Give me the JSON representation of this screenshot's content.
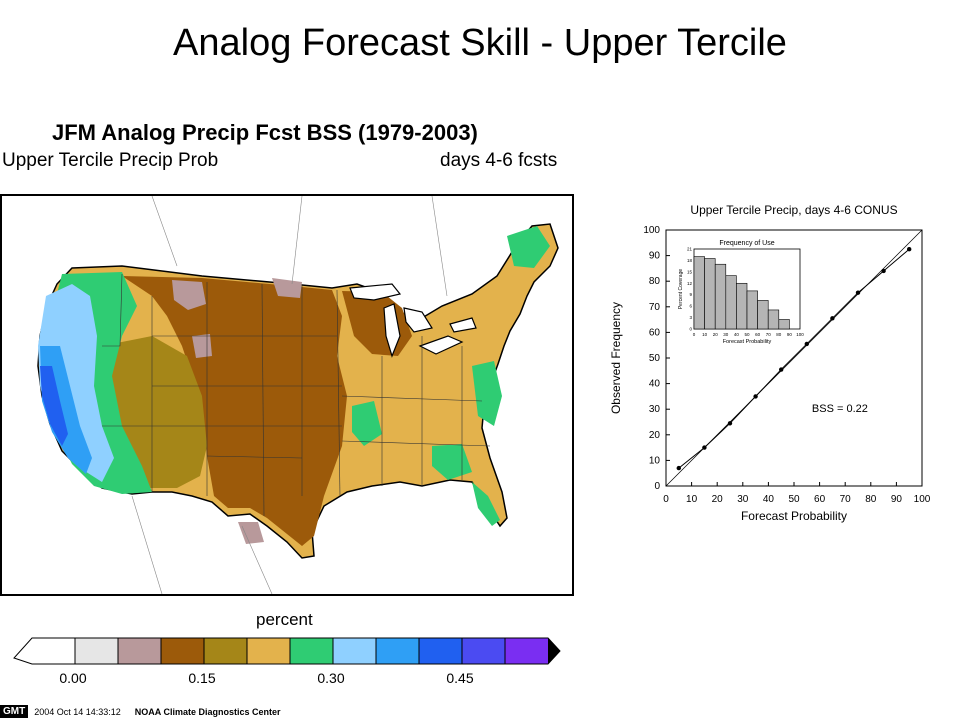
{
  "slide": {
    "title": "Analog Forecast Skill - Upper Tercile"
  },
  "map": {
    "title": "JFM Analog Precip Fcst BSS (1979-2003)",
    "subtitle_left": "Upper Tercile Precip Prob",
    "subtitle_right": "days 4-6 fcsts"
  },
  "colorbar": {
    "unit": "percent",
    "colors": [
      "#ffffff",
      "#e6e6e6",
      "#b8999b",
      "#9c5a0a",
      "#a58618",
      "#e3b24c",
      "#2fcc73",
      "#8fd0ff",
      "#2f9ff5",
      "#2060f0",
      "#4b4bf2",
      "#7a2ef2"
    ],
    "tick_labels": [
      "0.00",
      "0.15",
      "0.30",
      "0.45"
    ]
  },
  "footer": {
    "logo": "GMT",
    "timestamp": "2004 Oct 14 14:33:12",
    "center": "NOAA Climate Diagnostics Center"
  },
  "chart_data": [
    {
      "type": "line",
      "title": "Upper Tercile Precip, days 4-6 CONUS",
      "xlabel": "Forecast Probability",
      "ylabel": "Observed Frequency",
      "xlim": [
        0,
        100
      ],
      "ylim": [
        0,
        100
      ],
      "x_ticks": [
        "0",
        "10",
        "20",
        "30",
        "40",
        "50",
        "60",
        "70",
        "80",
        "90",
        "100"
      ],
      "y_ticks": [
        "0",
        "10",
        "20",
        "30",
        "40",
        "50",
        "60",
        "70",
        "80",
        "90",
        "100"
      ],
      "series": [
        {
          "x": [
            5,
            15,
            25,
            35,
            45,
            55,
            65,
            75,
            85,
            95
          ],
          "y": [
            7,
            15,
            24.5,
            35,
            45.5,
            55.5,
            65.5,
            75.5,
            84,
            92.5
          ]
        }
      ],
      "annotation": "BSS = 0.22"
    },
    {
      "type": "bar",
      "title": "Frequency of Use",
      "xlabel": "Forecast Probability",
      "ylabel": "Percent Coverage",
      "categories": [
        "0",
        "10",
        "20",
        "30",
        "40",
        "50",
        "60",
        "70",
        "80",
        "90"
      ],
      "values": [
        19,
        18.5,
        17,
        14,
        12,
        10,
        7.5,
        5,
        2.5,
        0
      ],
      "ylim": [
        0,
        21
      ],
      "x_ticks": [
        "0",
        "10",
        "20",
        "30",
        "40",
        "50",
        "60",
        "70",
        "80",
        "90",
        "100"
      ],
      "y_ticks": [
        "0",
        "3",
        "6",
        "9",
        "12",
        "15",
        "18",
        "21"
      ]
    }
  ]
}
